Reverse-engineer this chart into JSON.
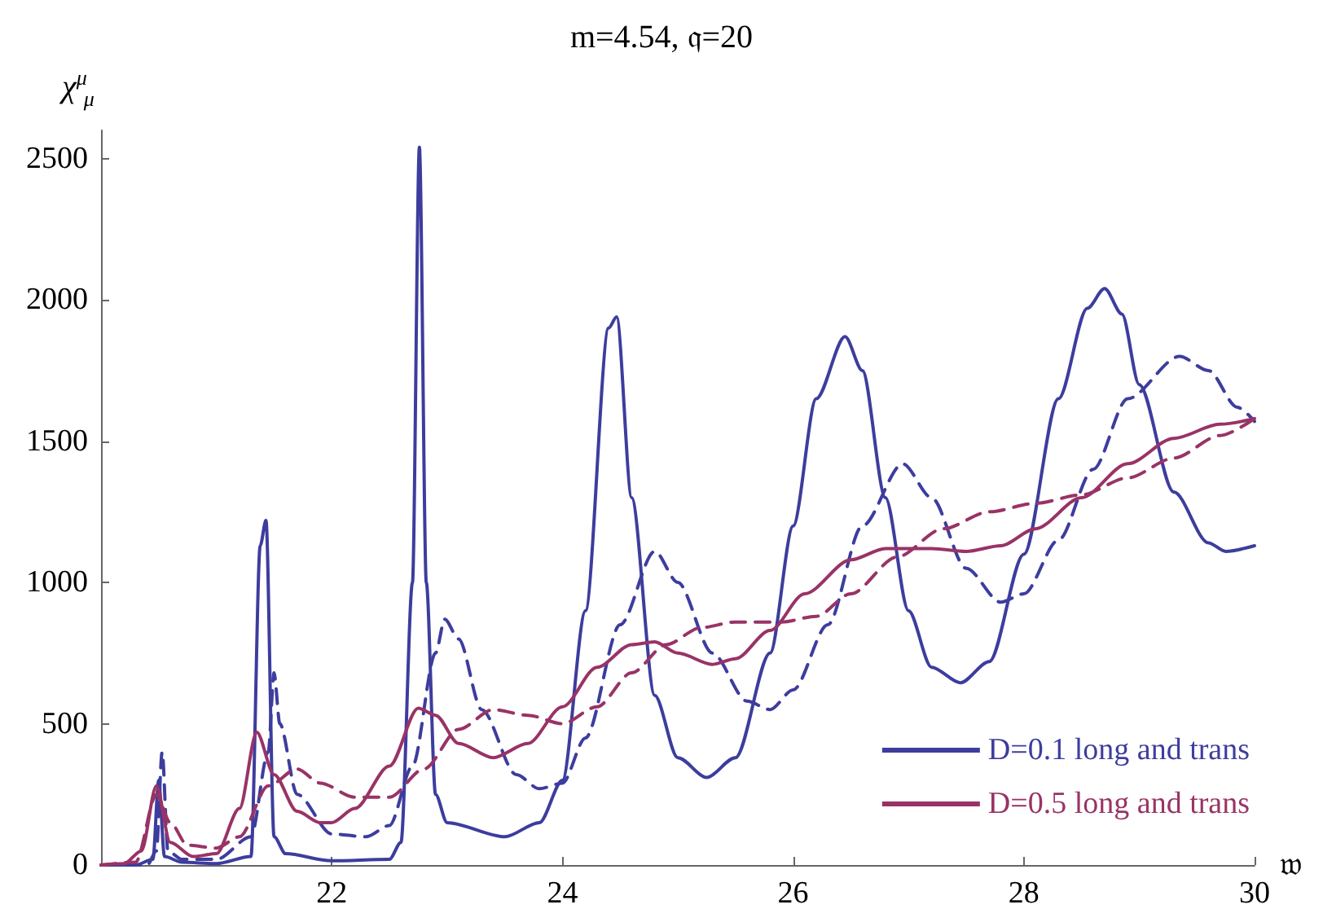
{
  "chart_data": {
    "type": "line",
    "title": "m=4.54, 𝔮=20",
    "xlabel": "𝔴",
    "ylabel": "χ$^{μ}$$_{μ}$",
    "xlim": [
      20,
      30
    ],
    "ylim": [
      0,
      2600
    ],
    "xticks": [
      22,
      24,
      26,
      28,
      30
    ],
    "yticks": [
      0,
      500,
      1000,
      1500,
      2000,
      2500
    ],
    "grid": false,
    "legend": "bottom right",
    "marker": "none",
    "series": [
      {
        "name": "D=0.1 long and trans",
        "color": "#3d3d9e",
        "line_style": "solid",
        "x": [
          20.0,
          20.3,
          20.45,
          20.5,
          20.55,
          20.7,
          21.0,
          21.3,
          21.38,
          21.43,
          21.5,
          21.6,
          22.0,
          22.5,
          22.6,
          22.7,
          22.76,
          22.82,
          22.9,
          23.0,
          23.5,
          23.8,
          24.0,
          24.2,
          24.4,
          24.47,
          24.6,
          24.8,
          25.0,
          25.25,
          25.5,
          25.8,
          26.0,
          26.2,
          26.45,
          26.6,
          26.8,
          27.0,
          27.2,
          27.45,
          27.7,
          28.0,
          28.3,
          28.55,
          28.7,
          28.85,
          29.0,
          29.3,
          29.6,
          29.75,
          30.0
        ],
        "values": [
          0,
          0,
          20,
          300,
          30,
          10,
          5,
          30,
          1130,
          1220,
          100,
          40,
          15,
          20,
          80,
          1000,
          2540,
          1000,
          250,
          150,
          100,
          150,
          300,
          900,
          1900,
          1940,
          1300,
          600,
          380,
          310,
          380,
          750,
          1200,
          1650,
          1870,
          1750,
          1300,
          900,
          700,
          645,
          720,
          1100,
          1650,
          1970,
          2040,
          1950,
          1700,
          1320,
          1140,
          1110,
          1130
        ]
      },
      {
        "color": "#3d3d9e",
        "line_style": "dashed",
        "x": [
          20.0,
          20.4,
          20.48,
          20.53,
          20.58,
          20.7,
          21.0,
          21.3,
          21.45,
          21.5,
          21.55,
          21.7,
          22.0,
          22.3,
          22.5,
          22.7,
          22.9,
          22.98,
          23.1,
          23.3,
          23.6,
          23.8,
          24.0,
          24.2,
          24.5,
          24.8,
          25.0,
          25.3,
          25.6,
          25.8,
          26.0,
          26.3,
          26.6,
          26.95,
          27.2,
          27.5,
          27.8,
          28.0,
          28.3,
          28.6,
          28.9,
          29.35,
          29.6,
          29.85,
          30.0
        ],
        "values": [
          0,
          0,
          50,
          400,
          50,
          20,
          20,
          100,
          400,
          680,
          500,
          250,
          110,
          100,
          140,
          350,
          750,
          870,
          800,
          550,
          320,
          270,
          290,
          450,
          850,
          1110,
          1000,
          750,
          580,
          550,
          620,
          850,
          1200,
          1420,
          1300,
          1050,
          930,
          960,
          1150,
          1400,
          1650,
          1800,
          1750,
          1620,
          1570
        ]
      },
      {
        "name": "D=0.5 long and trans",
        "color": "#993366",
        "line_style": "solid",
        "x": [
          20.0,
          20.2,
          20.35,
          20.48,
          20.6,
          20.8,
          21.0,
          21.2,
          21.35,
          21.5,
          21.7,
          21.9,
          22.0,
          22.2,
          22.5,
          22.75,
          22.9,
          23.1,
          23.4,
          23.7,
          24.0,
          24.3,
          24.6,
          24.8,
          25.0,
          25.3,
          25.5,
          25.8,
          26.1,
          26.5,
          26.8,
          27.2,
          27.5,
          27.8,
          28.1,
          28.5,
          28.9,
          29.3,
          29.7,
          30.0
        ],
        "values": [
          0,
          5,
          50,
          280,
          80,
          30,
          40,
          200,
          470,
          320,
          190,
          150,
          150,
          200,
          350,
          555,
          530,
          430,
          380,
          430,
          560,
          700,
          780,
          790,
          750,
          710,
          730,
          830,
          960,
          1080,
          1120,
          1120,
          1110,
          1130,
          1190,
          1300,
          1420,
          1510,
          1560,
          1580
        ]
      },
      {
        "color": "#993366",
        "line_style": "dashed",
        "x": [
          20.0,
          20.3,
          20.48,
          20.6,
          20.75,
          21.0,
          21.2,
          21.45,
          21.7,
          21.9,
          22.2,
          22.5,
          22.8,
          23.1,
          23.4,
          23.7,
          24.0,
          24.3,
          24.6,
          24.9,
          25.2,
          25.5,
          25.9,
          26.2,
          26.5,
          26.9,
          27.3,
          27.7,
          28.1,
          28.5,
          28.9,
          29.3,
          29.7,
          30.0
        ],
        "values": [
          0,
          10,
          250,
          150,
          70,
          60,
          100,
          280,
          340,
          290,
          240,
          240,
          340,
          480,
          550,
          530,
          500,
          560,
          680,
          780,
          840,
          860,
          860,
          880,
          960,
          1090,
          1190,
          1250,
          1280,
          1310,
          1370,
          1440,
          1520,
          1580
        ]
      }
    ]
  }
}
